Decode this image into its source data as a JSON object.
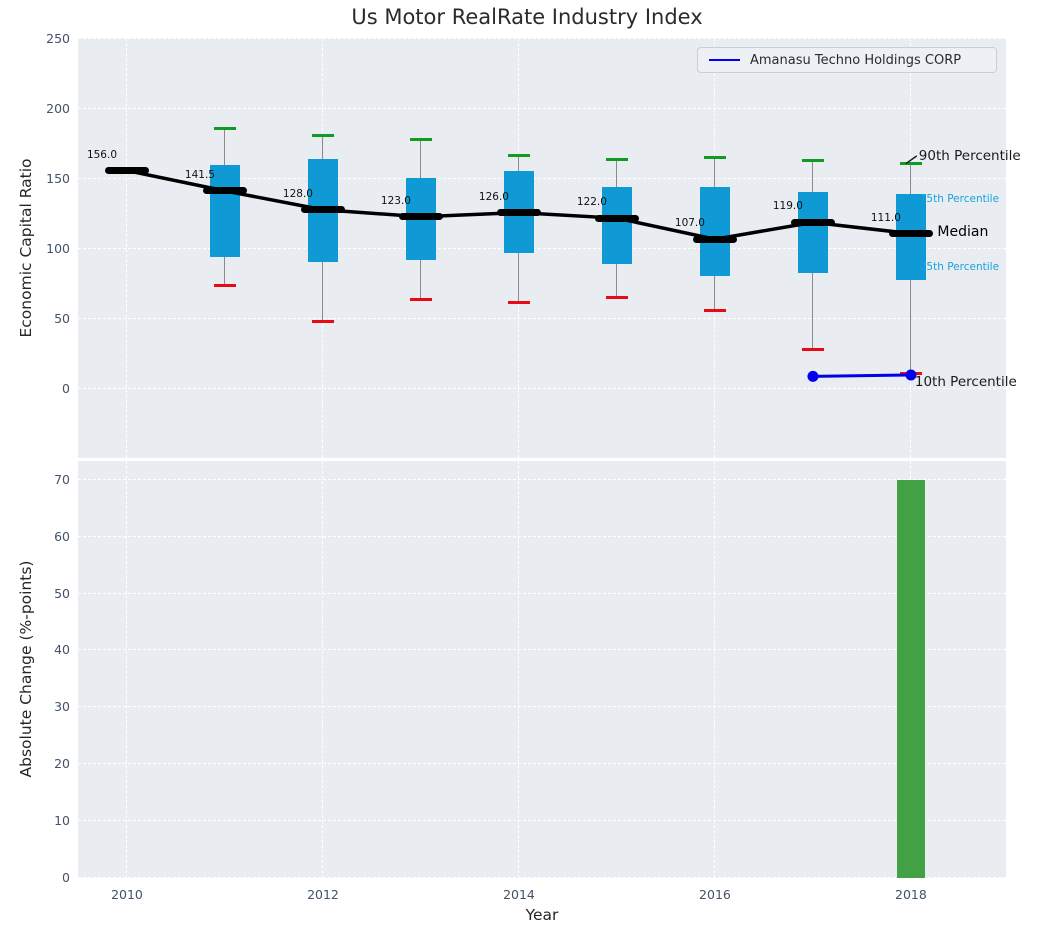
{
  "header": {
    "title": "Us Motor RealRate Industry Index"
  },
  "legend": {
    "label": "Amanasu Techno Holdings CORP"
  },
  "colors": {
    "plot_bg": "#e9edf1",
    "grid": "#ffffff",
    "box": "#0f9ad6",
    "p90_cap": "#119b22",
    "p10_cap": "#e60b14",
    "median": "#000000",
    "company": "#0000ee",
    "bar": "#42a045",
    "whisker": "#8a8a8a",
    "tick_label": "#44536a",
    "text": "#262626",
    "annotation_cyan": "#17a2de"
  },
  "chart_data": [
    {
      "type": "boxplot-line",
      "title": "Us Motor RealRate Industry Index",
      "ylabel": "Economic Capital Ratio",
      "ylim": [
        -49.3,
        250.7
      ],
      "xlim": [
        2009.5,
        2018.97
      ],
      "yticks": [
        0,
        50,
        100,
        150,
        200,
        250
      ],
      "xticks": [
        2010,
        2012,
        2014,
        2016,
        2018
      ],
      "grid": "white-dashed",
      "legend_position": "upper right",
      "years": [
        2010,
        2011,
        2012,
        2013,
        2014,
        2015,
        2016,
        2017,
        2018
      ],
      "median": [
        156.0,
        141.5,
        128.0,
        123.0,
        126.0,
        122.0,
        107.0,
        119.0,
        111.0
      ],
      "median_labels": [
        "156.0",
        "141.5",
        "128.0",
        "123.0",
        "126.0",
        "122.0",
        "107.0",
        "119.0",
        "111.0"
      ],
      "p90": [
        null,
        186,
        181,
        178,
        167,
        164,
        165,
        163,
        161
      ],
      "p75": [
        null,
        160,
        164,
        151,
        156,
        144,
        144,
        141,
        139
      ],
      "p25": [
        null,
        94,
        91,
        92,
        97,
        89,
        81,
        83,
        78
      ],
      "p10": [
        null,
        74,
        48,
        64,
        62,
        65,
        56,
        28,
        11
      ],
      "company_series": {
        "name": "Amanasu Techno Holdings CORP",
        "x": [
          2017,
          2018
        ],
        "y": [
          9,
          10
        ]
      },
      "annotations": [
        {
          "id": "90th-percentile",
          "text": "90th Percentile",
          "color": "#1a1a1a",
          "size": 13.5,
          "x": 2018.08,
          "y": 166.5,
          "anchor_y": 161,
          "leader": true
        },
        {
          "id": "75th-percentile",
          "text": "75th Percentile",
          "color": "#17a2de",
          "size": 10.5,
          "x": 2018.09,
          "y": 135.5
        },
        {
          "id": "median",
          "text": "Median",
          "color": "#000000",
          "size": 14,
          "x": 2018.27,
          "y": 112
        },
        {
          "id": "25th-percentile",
          "text": "25th Percentile",
          "color": "#17a2de",
          "size": 10.5,
          "x": 2018.09,
          "y": 87
        },
        {
          "id": "10th-percentile",
          "text": "10th Percentile",
          "color": "#1a1a1a",
          "size": 13.5,
          "x": 2018.04,
          "y": 4.5
        }
      ]
    },
    {
      "type": "bar",
      "ylabel": "Absolute Change (%-points)",
      "xlabel": "Year",
      "ylim": [
        0,
        73.3
      ],
      "xlim": [
        2009.5,
        2018.97
      ],
      "yticks": [
        0,
        10,
        20,
        30,
        40,
        50,
        60,
        70
      ],
      "xticks": [
        2010,
        2012,
        2014,
        2016,
        2018
      ],
      "grid": "white-dashed",
      "bars": [
        {
          "x": 2018,
          "value": 69.9
        }
      ]
    }
  ]
}
